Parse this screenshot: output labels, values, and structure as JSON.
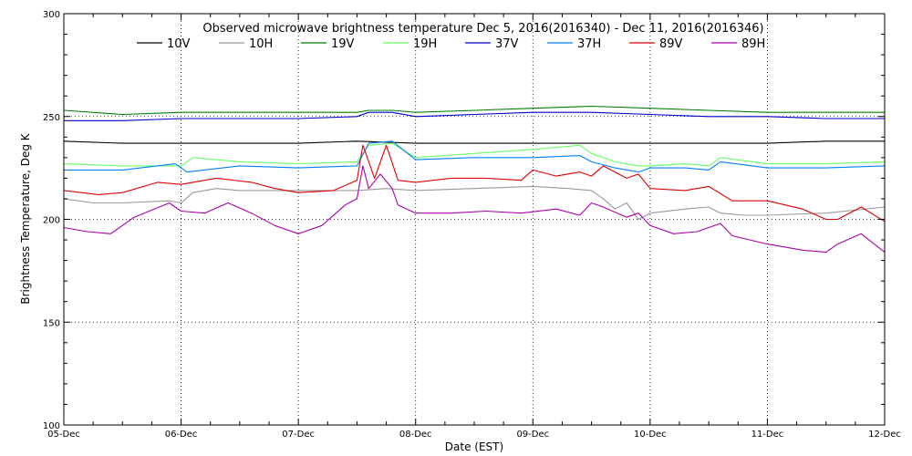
{
  "chart_data": {
    "type": "line",
    "title": "Observed microwave brightness temperature Dec  5, 2016(2016340) - Dec 11, 2016(2016346)",
    "xlabel": "Date (EST)",
    "ylabel": "Brightness Temperature, Deg K",
    "ylim": [
      100,
      300
    ],
    "xlim": [
      0,
      7
    ],
    "yticks": [
      100,
      150,
      200,
      250,
      300
    ],
    "x_tick_labels": [
      "05-Dec",
      "06-Dec",
      "07-Dec",
      "08-Dec",
      "09-Dec",
      "10-Dec",
      "11-Dec",
      "12-Dec"
    ],
    "grid": "dotted",
    "legend_position": "top",
    "series": [
      {
        "name": "10V",
        "color": "#000000",
        "x": [
          0,
          0.5,
          1,
          1.5,
          2,
          2.5,
          3,
          3.5,
          4,
          4.5,
          5,
          5.5,
          6,
          6.5,
          7
        ],
        "values": [
          238,
          237,
          237,
          237,
          237,
          238,
          237,
          237,
          237,
          237,
          237,
          237,
          237,
          238,
          238
        ]
      },
      {
        "name": "10H",
        "color": "#999999",
        "x": [
          0,
          0.25,
          0.5,
          0.9,
          1,
          1.1,
          1.3,
          1.5,
          2,
          2.5,
          2.75,
          3,
          3.5,
          4,
          4.3,
          4.5,
          4.6,
          4.7,
          4.8,
          4.9,
          5,
          5.3,
          5.5,
          5.6,
          5.8,
          6,
          6.5,
          7
        ],
        "values": [
          210,
          208,
          208,
          209,
          208,
          213,
          215,
          214,
          214,
          214,
          215,
          214,
          215,
          216,
          215,
          214,
          210,
          205,
          208,
          200,
          203,
          205,
          206,
          203,
          202,
          202,
          203,
          206
        ]
      },
      {
        "name": "19V",
        "color": "#008000",
        "x": [
          0,
          0.5,
          1,
          1.5,
          2,
          2.5,
          2.6,
          2.8,
          3,
          3.5,
          4,
          4.5,
          5,
          5.5,
          6,
          6.5,
          7
        ],
        "values": [
          253,
          251,
          252,
          252,
          252,
          252,
          253,
          253,
          252,
          253,
          254,
          255,
          254,
          253,
          252,
          252,
          252
        ]
      },
      {
        "name": "19H",
        "color": "#66ff66",
        "x": [
          0,
          0.5,
          1,
          1.1,
          1.5,
          2,
          2.5,
          2.6,
          2.8,
          3,
          3.5,
          4,
          4.4,
          4.5,
          4.7,
          4.9,
          5,
          5.3,
          5.5,
          5.6,
          6,
          6.5,
          7
        ],
        "values": [
          227,
          226,
          226,
          230,
          228,
          227,
          228,
          236,
          237,
          230,
          232,
          234,
          236,
          232,
          228,
          226,
          226,
          227,
          226,
          230,
          227,
          227,
          228
        ]
      },
      {
        "name": "37V",
        "color": "#0000cc",
        "x": [
          0,
          0.5,
          1,
          1.5,
          2,
          2.5,
          2.6,
          2.8,
          3,
          3.5,
          4,
          4.5,
          5,
          5.5,
          6,
          6.5,
          7
        ],
        "values": [
          248,
          248,
          249,
          249,
          249,
          250,
          252,
          252,
          250,
          251,
          252,
          252,
          251,
          250,
          250,
          249,
          249
        ]
      },
      {
        "name": "37H",
        "color": "#0080ff",
        "x": [
          0,
          0.5,
          0.95,
          1.05,
          1.5,
          2,
          2.5,
          2.6,
          2.8,
          3,
          3.5,
          4,
          4.4,
          4.5,
          4.7,
          4.9,
          5,
          5.3,
          5.5,
          5.6,
          6,
          6.5,
          7
        ],
        "values": [
          224,
          224,
          227,
          223,
          226,
          225,
          226,
          237,
          238,
          229,
          230,
          230,
          231,
          228,
          225,
          223,
          225,
          225,
          224,
          228,
          225,
          225,
          226
        ]
      },
      {
        "name": "89V",
        "color": "#e00000",
        "x": [
          0,
          0.3,
          0.5,
          0.8,
          1,
          1.3,
          1.6,
          1.8,
          2,
          2.3,
          2.5,
          2.55,
          2.65,
          2.75,
          2.85,
          3,
          3.3,
          3.6,
          3.9,
          4,
          4.2,
          4.4,
          4.5,
          4.6,
          4.8,
          4.9,
          5,
          5.3,
          5.5,
          5.7,
          6,
          6.3,
          6.5,
          6.6,
          6.8,
          7
        ],
        "values": [
          214,
          212,
          213,
          218,
          217,
          220,
          218,
          215,
          213,
          214,
          219,
          236,
          220,
          236,
          219,
          218,
          220,
          220,
          219,
          224,
          221,
          223,
          221,
          226,
          220,
          222,
          215,
          214,
          216,
          209,
          209,
          205,
          200,
          200,
          206,
          199
        ]
      },
      {
        "name": "89H",
        "color": "#aa00aa",
        "x": [
          0,
          0.2,
          0.4,
          0.6,
          0.9,
          1,
          1.2,
          1.4,
          1.6,
          1.8,
          2,
          2.2,
          2.4,
          2.5,
          2.55,
          2.6,
          2.7,
          2.8,
          2.85,
          3,
          3.3,
          3.6,
          3.9,
          4.2,
          4.4,
          4.5,
          4.6,
          4.8,
          4.9,
          5,
          5.2,
          5.4,
          5.6,
          5.7,
          6,
          6.3,
          6.5,
          6.6,
          6.8,
          7
        ],
        "values": [
          196,
          194,
          193,
          201,
          208,
          204,
          203,
          208,
          203,
          197,
          193,
          197,
          207,
          210,
          226,
          215,
          222,
          215,
          207,
          203,
          203,
          204,
          203,
          205,
          202,
          208,
          206,
          201,
          203,
          197,
          193,
          194,
          198,
          192,
          188,
          185,
          184,
          188,
          193,
          184
        ]
      }
    ]
  }
}
